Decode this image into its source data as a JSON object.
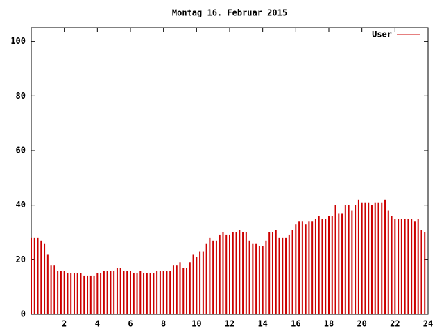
{
  "chart_data": {
    "type": "impulses",
    "title": "Montag 16. Februar 2015",
    "series": [
      {
        "name": "User",
        "color": "#cc0000",
        "x": [
          0,
          0.2,
          0.4,
          0.6,
          0.8,
          1,
          1.2,
          1.4,
          1.6,
          1.8,
          2,
          2.2,
          2.4,
          2.6,
          2.8,
          3,
          3.2,
          3.4,
          3.6,
          3.8,
          4,
          4.2,
          4.4,
          4.6,
          4.8,
          5,
          5.2,
          5.4,
          5.6,
          5.8,
          6,
          6.2,
          6.4,
          6.6,
          6.8,
          7,
          7.2,
          7.4,
          7.6,
          7.8,
          8,
          8.2,
          8.4,
          8.6,
          8.8,
          9,
          9.2,
          9.4,
          9.6,
          9.8,
          10,
          10.2,
          10.4,
          10.6,
          10.8,
          11,
          11.2,
          11.4,
          11.6,
          11.8,
          12,
          12.2,
          12.4,
          12.6,
          12.8,
          13,
          13.2,
          13.4,
          13.6,
          13.8,
          14,
          14.2,
          14.4,
          14.6,
          14.8,
          15,
          15.2,
          15.4,
          15.6,
          15.8,
          16,
          16.2,
          16.4,
          16.6,
          16.8,
          17,
          17.2,
          17.4,
          17.6,
          17.8,
          18,
          18.2,
          18.4,
          18.6,
          18.8,
          19,
          19.2,
          19.4,
          19.6,
          19.8,
          20,
          20.2,
          20.4,
          20.6,
          20.8,
          21,
          21.2,
          21.4,
          21.6,
          21.8,
          22,
          22.2,
          22.4,
          22.6,
          22.8,
          23,
          23.2,
          23.4,
          23.6,
          23.8
        ],
        "values": [
          28,
          28,
          28,
          27,
          26,
          22,
          18,
          18,
          16,
          16,
          16,
          15,
          15,
          15,
          15,
          15,
          14,
          14,
          14,
          14,
          15,
          15,
          16,
          16,
          16,
          16,
          17,
          17,
          16,
          16,
          16,
          15,
          15,
          16,
          15,
          15,
          15,
          15,
          16,
          16,
          16,
          16,
          16,
          18,
          18,
          19,
          17,
          17,
          19,
          22,
          21,
          23,
          23,
          26,
          28,
          27,
          27,
          29,
          30,
          29,
          29,
          30,
          30,
          31,
          30,
          30,
          27,
          26,
          26,
          25,
          25,
          27,
          30,
          30,
          31,
          28,
          28,
          28,
          29,
          31,
          33,
          34,
          34,
          33,
          34,
          34,
          35,
          36,
          35,
          35,
          36,
          36,
          40,
          37,
          37,
          40,
          40,
          38,
          40,
          42,
          41,
          41,
          41,
          40,
          41,
          41,
          41,
          42,
          38,
          36,
          35,
          35,
          35,
          35,
          35,
          35,
          34,
          35,
          31,
          30
        ]
      }
    ],
    "xlim": [
      0,
      24
    ],
    "xticks": [
      2,
      4,
      6,
      8,
      10,
      12,
      14,
      16,
      18,
      20,
      22,
      24
    ],
    "ylim": [
      0,
      105
    ],
    "yticks": [
      0,
      20,
      40,
      60,
      80,
      100
    ],
    "legend": "top-right"
  }
}
